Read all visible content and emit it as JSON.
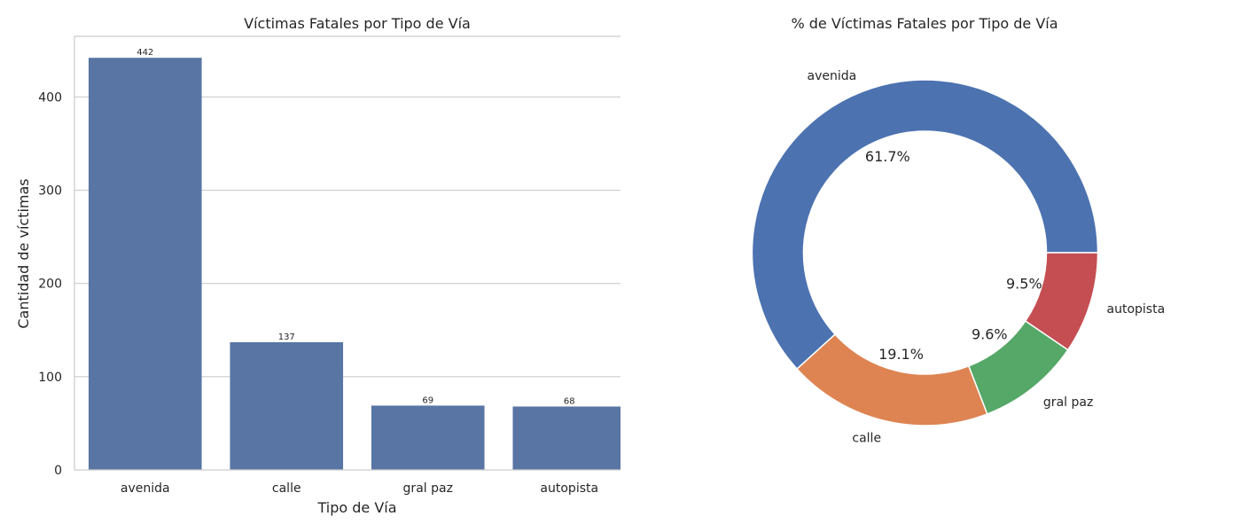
{
  "chart_data": [
    {
      "type": "bar",
      "title": "Víctimas Fatales por Tipo de Vía",
      "xlabel": "Tipo de Vía",
      "ylabel": "Cantidad de víctimas",
      "categories": [
        "avenida",
        "calle",
        "gral paz",
        "autopista"
      ],
      "values": [
        442,
        137,
        69,
        68
      ],
      "data_labels": [
        "442",
        "137",
        "69",
        "68"
      ],
      "yticks": [
        0,
        100,
        200,
        300,
        400
      ],
      "ylim": [
        0,
        465
      ],
      "grid": true,
      "color": "#5875a4"
    },
    {
      "type": "pie",
      "title": "% de Víctimas Fatales por Tipo de Vía",
      "labels": [
        "avenida",
        "calle",
        "gral paz",
        "autopista"
      ],
      "values": [
        442,
        137,
        69,
        68
      ],
      "percent_labels": [
        "61.7%",
        "19.1%",
        "9.6%",
        "9.5%"
      ],
      "colors": [
        "#4c72b0",
        "#dd8452",
        "#55a868",
        "#c44e52"
      ],
      "style": "donut"
    }
  ]
}
